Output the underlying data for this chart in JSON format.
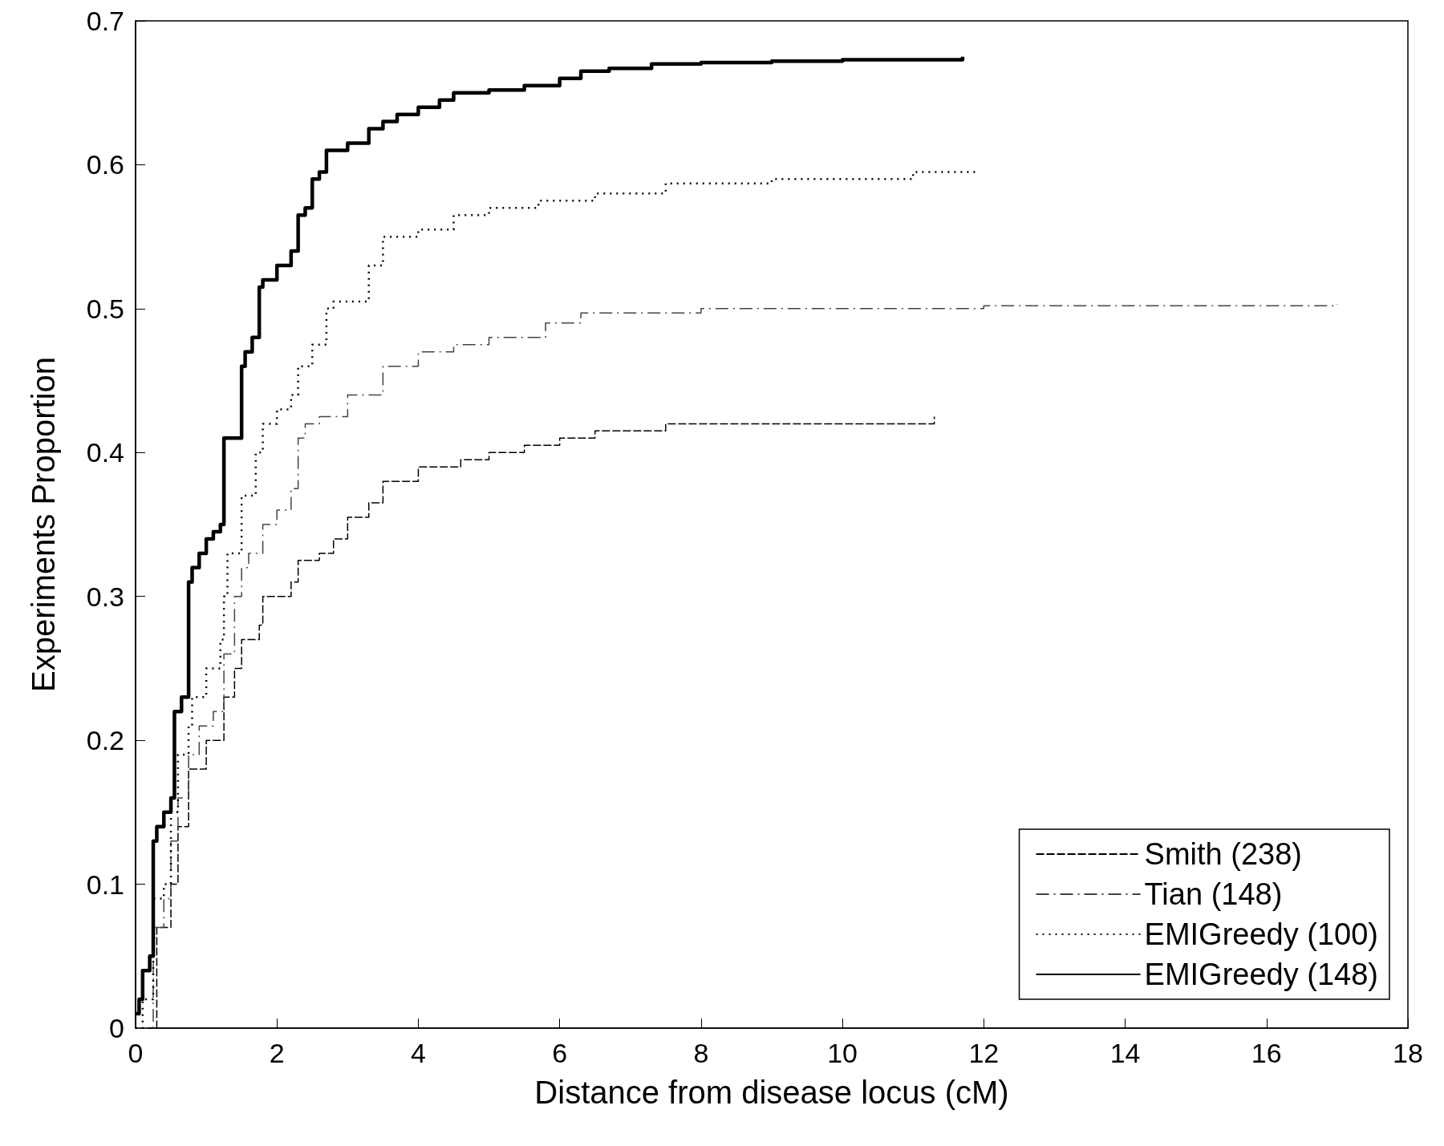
{
  "chart_data": {
    "type": "step",
    "xlabel": "Distance from disease locus (cM)",
    "ylabel": "Experiments Proportion",
    "xlim": [
      0,
      18
    ],
    "xticks": [
      0,
      2,
      4,
      6,
      8,
      10,
      12,
      14,
      16,
      18
    ],
    "ylim": [
      0,
      0.7
    ],
    "yticks": [
      0,
      0.1,
      0.2,
      0.3,
      0.4,
      0.5,
      0.6,
      0.7
    ],
    "grid": false,
    "legend": "bottom right",
    "marker": "none",
    "series": [
      {
        "name": "Smith (238)",
        "color": "#000000",
        "line_style": "dashed",
        "x": [
          0,
          0.3,
          0.5,
          0.6,
          0.75,
          1.0,
          1.25,
          1.4,
          1.5,
          1.75,
          1.8,
          2.2,
          2.3,
          2.6,
          2.8,
          3,
          3.3,
          3.5,
          4,
          4.6,
          5,
          5.5,
          6,
          6.5,
          7.5,
          9,
          11.3
        ],
        "values": [
          0,
          0.07,
          0.1,
          0.14,
          0.18,
          0.2,
          0.23,
          0.25,
          0.27,
          0.28,
          0.3,
          0.31,
          0.325,
          0.33,
          0.34,
          0.355,
          0.365,
          0.38,
          0.39,
          0.395,
          0.4,
          0.405,
          0.41,
          0.415,
          0.42,
          0.42,
          0.425
        ]
      },
      {
        "name": "Tian (148)",
        "color": "#444444",
        "line_style": "dashdot",
        "x": [
          0,
          0.25,
          0.4,
          0.5,
          0.6,
          0.75,
          0.9,
          1.1,
          1.25,
          1.4,
          1.5,
          1.6,
          1.8,
          2.0,
          2.2,
          2.3,
          2.4,
          2.6,
          3,
          3.5,
          4,
          4.5,
          5,
          5.8,
          6.3,
          8,
          12,
          17
        ],
        "values": [
          0,
          0.07,
          0.09,
          0.13,
          0.16,
          0.19,
          0.21,
          0.22,
          0.26,
          0.3,
          0.32,
          0.33,
          0.35,
          0.36,
          0.375,
          0.41,
          0.42,
          0.425,
          0.44,
          0.46,
          0.47,
          0.475,
          0.48,
          0.49,
          0.497,
          0.5,
          0.502,
          0.503
        ]
      },
      {
        "name": "EMIGreedy (100)",
        "color": "#000000",
        "line_style": "dotted",
        "x": [
          0,
          0.1,
          0.25,
          0.4,
          0.5,
          0.6,
          0.75,
          0.8,
          1.0,
          1.2,
          1.25,
          1.3,
          1.5,
          1.7,
          1.8,
          2.0,
          2.2,
          2.3,
          2.5,
          2.7,
          2.8,
          3.3,
          3.5,
          4.0,
          4.5,
          5.0,
          5.7,
          6.5,
          7.5,
          9,
          11,
          11.9
        ],
        "values": [
          0,
          0.02,
          0.09,
          0.1,
          0.15,
          0.19,
          0.21,
          0.23,
          0.25,
          0.27,
          0.3,
          0.33,
          0.37,
          0.4,
          0.42,
          0.43,
          0.44,
          0.46,
          0.475,
          0.5,
          0.505,
          0.53,
          0.55,
          0.555,
          0.565,
          0.57,
          0.575,
          0.58,
          0.587,
          0.59,
          0.595,
          0.597
        ]
      },
      {
        "name": "EMIGreedy (148)",
        "color": "#000000",
        "line_style": "solid",
        "x": [
          0,
          0.05,
          0.1,
          0.2,
          0.25,
          0.3,
          0.4,
          0.5,
          0.55,
          0.65,
          0.75,
          0.8,
          0.9,
          1.0,
          1.1,
          1.2,
          1.25,
          1.5,
          1.55,
          1.65,
          1.75,
          1.8,
          2.0,
          2.2,
          2.3,
          2.4,
          2.5,
          2.6,
          2.7,
          3.0,
          3.3,
          3.5,
          3.7,
          4.0,
          4.3,
          4.5,
          5,
          5.5,
          6,
          6.3,
          6.7,
          7.3,
          8,
          9,
          10,
          11,
          11.7
        ],
        "values": [
          0.01,
          0.02,
          0.04,
          0.05,
          0.13,
          0.14,
          0.15,
          0.16,
          0.22,
          0.23,
          0.31,
          0.32,
          0.33,
          0.34,
          0.345,
          0.35,
          0.41,
          0.46,
          0.47,
          0.48,
          0.515,
          0.52,
          0.53,
          0.54,
          0.565,
          0.57,
          0.59,
          0.595,
          0.61,
          0.615,
          0.625,
          0.63,
          0.635,
          0.64,
          0.645,
          0.65,
          0.652,
          0.655,
          0.66,
          0.665,
          0.667,
          0.67,
          0.671,
          0.672,
          0.673,
          0.673,
          0.675
        ]
      }
    ]
  }
}
